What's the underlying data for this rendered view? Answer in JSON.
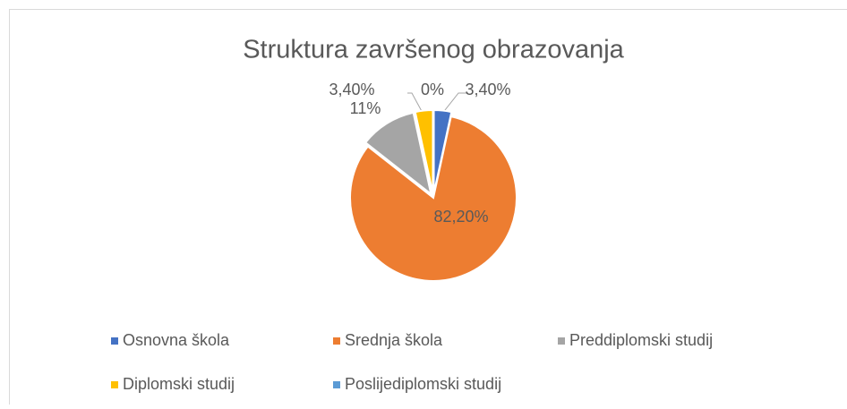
{
  "chart_data": {
    "type": "pie",
    "title": "Struktura završenog obrazovanja",
    "categories": [
      "Osnovna škola",
      "Srednja škola",
      "Preddiplomski studij",
      "Diplomski studij",
      "Poslijediplomski studij"
    ],
    "values": [
      3.4,
      82.2,
      11,
      3.4,
      0
    ],
    "value_labels": [
      "3,40%",
      "82,20%",
      "11%",
      "3,40%",
      "0%"
    ],
    "colors": [
      "#4472c4",
      "#ed7d31",
      "#a5a5a5",
      "#ffc000",
      "#5b9bd5"
    ]
  }
}
